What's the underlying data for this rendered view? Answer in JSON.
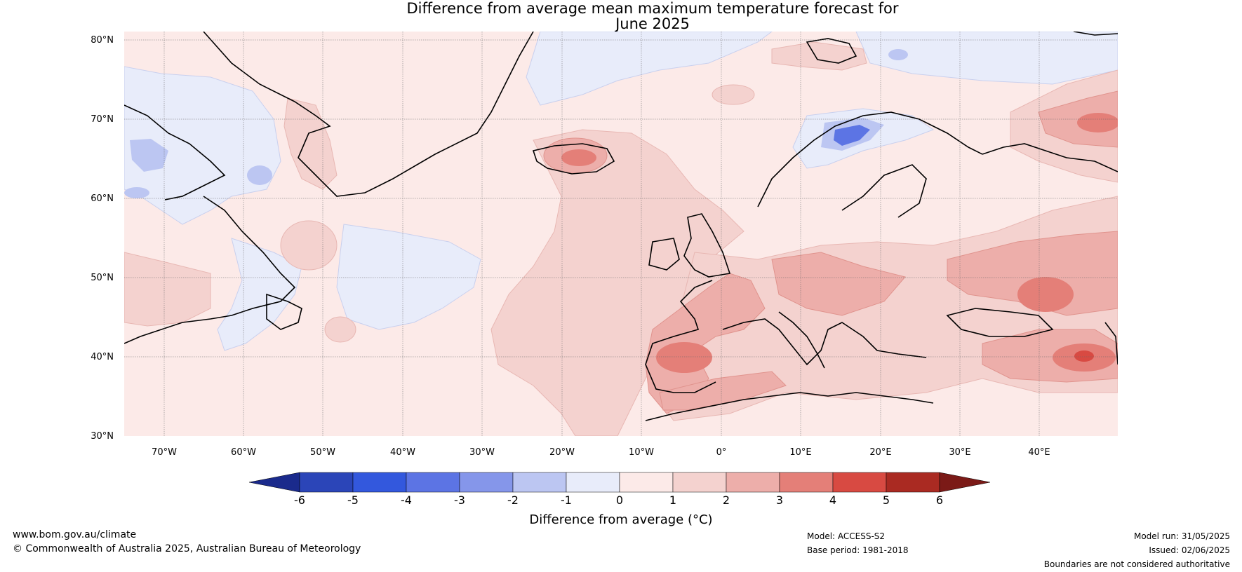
{
  "title": {
    "line1": "Difference from average mean maximum temperature forecast for",
    "line2": "June 2025"
  },
  "map": {
    "lat_labels": [
      "80°N",
      "70°N",
      "60°N",
      "50°N",
      "40°N",
      "30°N"
    ],
    "lon_labels": [
      "70°W",
      "60°W",
      "50°W",
      "40°W",
      "30°W",
      "20°W",
      "10°W",
      "0°",
      "10°E",
      "20°E",
      "30°E",
      "40°E"
    ]
  },
  "colorbar": {
    "ticks": [
      "-6",
      "-5",
      "-4",
      "-3",
      "-2",
      "-1",
      "0",
      "1",
      "2",
      "3",
      "4",
      "5",
      "6"
    ],
    "colors": [
      "#1a2a8c",
      "#2b45b8",
      "#3358dd",
      "#5c74e4",
      "#8596ea",
      "#bcc6f2",
      "#e8ecfa",
      "#fceae8",
      "#f4d2cf",
      "#edaeaa",
      "#e47f78",
      "#d84a42",
      "#aa2a22",
      "#7b1a17"
    ],
    "label": "Difference from average (°C)"
  },
  "footer": {
    "website": "www.bom.gov.au/climate",
    "copyright": "© Commonwealth of Australia 2025, Australian Bureau of Meteorology",
    "model": "Model: ACCESS-S2",
    "base_period": "Base period: 1981-2018",
    "model_run": "Model run: 31/05/2025",
    "issued": "Issued: 02/06/2025",
    "disclaimer": "Boundaries are not considered authoritative"
  }
}
